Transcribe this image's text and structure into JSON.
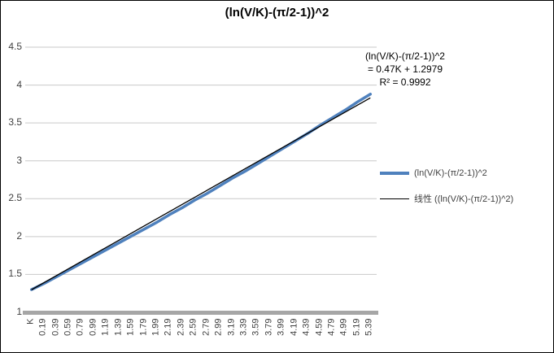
{
  "chart_data": {
    "type": "line",
    "title": "(ln(V/K)-(π/2-1))^2",
    "categories": [
      "K",
      "0.19",
      "0.39",
      "0.59",
      "0.79",
      "0.99",
      "1.19",
      "1.39",
      "1.59",
      "1.79",
      "1.99",
      "2.19",
      "2.39",
      "2.59",
      "2.79",
      "2.99",
      "3.19",
      "3.39",
      "3.59",
      "3.79",
      "3.99",
      "4.19",
      "4.39",
      "4.59",
      "4.79",
      "4.99",
      "5.19",
      "5.39"
    ],
    "x_numeric": [
      0,
      0.19,
      0.39,
      0.59,
      0.79,
      0.99,
      1.19,
      1.39,
      1.59,
      1.79,
      1.99,
      2.19,
      2.39,
      2.59,
      2.79,
      2.99,
      3.19,
      3.39,
      3.59,
      3.79,
      3.99,
      4.19,
      4.39,
      4.59,
      4.79,
      4.99,
      5.19,
      5.39
    ],
    "series": [
      {
        "name": "(ln(V/K)-(π/2-1))^2",
        "color": "#4f81bd",
        "values": [
          1.3,
          1.38,
          1.47,
          1.56,
          1.65,
          1.74,
          1.83,
          1.92,
          2.01,
          2.1,
          2.19,
          2.29,
          2.38,
          2.48,
          2.57,
          2.67,
          2.77,
          2.86,
          2.96,
          3.06,
          3.16,
          3.26,
          3.36,
          3.47,
          3.57,
          3.67,
          3.78,
          3.88
        ]
      }
    ],
    "trendline": {
      "name": "线性 ((ln(V/K)-(π/2-1))^2)",
      "slope": 0.47,
      "intercept": 1.2979,
      "r2": 0.9992,
      "color": "#000000"
    },
    "annotation": [
      "(ln(V/K)-(π/2-1))^2",
      "= 0.47K + 1.2979",
      "R² = 0.9992"
    ],
    "legend": [
      "(ln(V/K)-(π/2-1))^2",
      "线性 ((ln(V/K)-(π/2-1))^2)"
    ],
    "legend_position": "right",
    "grid": true,
    "y_axis": {
      "min": 1,
      "max": 4.5,
      "step": 0.5,
      "ticks": [
        "4.5",
        "4",
        "3.5",
        "3",
        "2.5",
        "2",
        "1.5",
        "1"
      ]
    },
    "x_axis": {
      "label_rotation": -90
    },
    "gridline_color": "#c9c9c9",
    "axis_bar_color": "#a6a6a6"
  }
}
